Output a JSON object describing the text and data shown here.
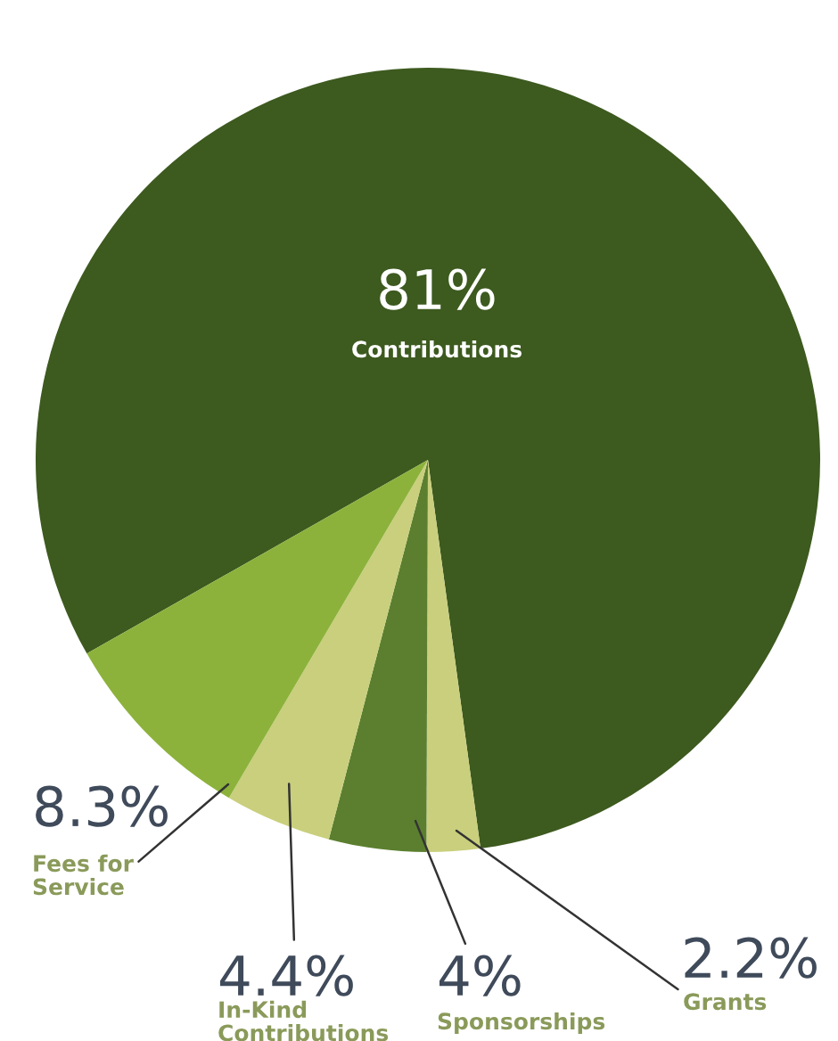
{
  "chart_data": {
    "type": "pie",
    "categories": [
      "Contributions",
      "Grants",
      "Sponsorships",
      "In-Kind\nContributions",
      "Fees for\nService"
    ],
    "values": [
      81,
      2.2,
      4,
      4.4,
      8.3
    ],
    "colors": [
      "#3d5a1f",
      "#c9cf7c",
      "#5b7f2f",
      "#c9cf7c",
      "#8cb23b"
    ],
    "value_labels": [
      "81%",
      "2.2%",
      "4%",
      "4.4%",
      "8.3%"
    ]
  }
}
